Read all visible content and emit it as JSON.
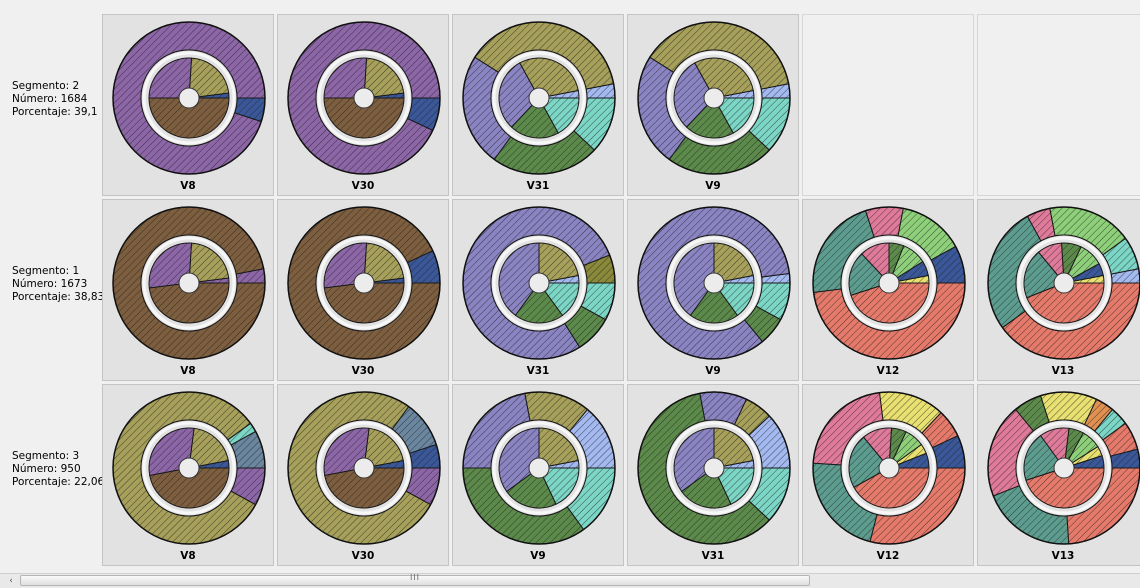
{
  "colors": {
    "purple": "#8c66a6",
    "brown": "#7d5e3f",
    "olive": "#a6a05a",
    "darkolive": "#8a8a3a",
    "blue": "#3a5899",
    "lightblue": "#a3b9f0",
    "slate": "#8a84c2",
    "green": "#5b8a4a",
    "lightgreen": "#8ed07a",
    "aqua": "#7cd6c6",
    "teal": "#5d9d8f",
    "salmon": "#e57a6b",
    "pink": "#e07a9a",
    "yellow": "#e8e070",
    "orange": "#e09050",
    "steel": "#6b87a0"
  },
  "scrollbar": {
    "left_arrow": "‹",
    "grip": "III"
  },
  "rows": [
    {
      "label": {
        "segment": "Segmento: 2",
        "number": "Número: 1684",
        "percent": "Porcentaje: 39,1"
      },
      "cells": [
        {
          "name": "V8",
          "outer": [
            {
              "color": "purple",
              "v": 95
            },
            {
              "color": "blue",
              "v": 5
            }
          ],
          "inner": [
            {
              "color": "blue",
              "v": 2
            },
            {
              "color": "olive",
              "v": 22
            },
            {
              "color": "purple",
              "v": 26
            },
            {
              "color": "brown",
              "v": 50
            }
          ]
        },
        {
          "name": "V30",
          "outer": [
            {
              "color": "purple",
              "v": 93
            },
            {
              "color": "blue",
              "v": 7
            }
          ],
          "inner": [
            {
              "color": "blue",
              "v": 2
            },
            {
              "color": "olive",
              "v": 22
            },
            {
              "color": "purple",
              "v": 26
            },
            {
              "color": "brown",
              "v": 50
            }
          ]
        },
        {
          "name": "V31",
          "outer": [
            {
              "color": "lightblue",
              "v": 3
            },
            {
              "color": "olive",
              "v": 38
            },
            {
              "color": "slate",
              "v": 24
            },
            {
              "color": "green",
              "v": 23
            },
            {
              "color": "aqua",
              "v": 12
            }
          ],
          "inner": [
            {
              "color": "lightblue",
              "v": 3
            },
            {
              "color": "olive",
              "v": 30
            },
            {
              "color": "slate",
              "v": 30
            },
            {
              "color": "green",
              "v": 20
            },
            {
              "color": "aqua",
              "v": 17
            }
          ]
        },
        {
          "name": "V9",
          "outer": [
            {
              "color": "lightblue",
              "v": 3
            },
            {
              "color": "olive",
              "v": 38
            },
            {
              "color": "slate",
              "v": 24
            },
            {
              "color": "green",
              "v": 23
            },
            {
              "color": "aqua",
              "v": 12
            }
          ],
          "inner": [
            {
              "color": "lightblue",
              "v": 3
            },
            {
              "color": "olive",
              "v": 30
            },
            {
              "color": "slate",
              "v": 30
            },
            {
              "color": "green",
              "v": 20
            },
            {
              "color": "aqua",
              "v": 17
            }
          ]
        },
        {
          "name": "",
          "empty": true
        },
        {
          "name": "",
          "empty": true
        }
      ]
    },
    {
      "label": {
        "segment": "Segmento: 1",
        "number": "Número: 1673",
        "percent": "Porcentaje: 38,83"
      },
      "cells": [
        {
          "name": "V8",
          "outer": [
            {
              "color": "purple",
              "v": 3
            },
            {
              "color": "brown",
              "v": 97
            }
          ],
          "inner": [
            {
              "color": "purple",
              "v": 2
            },
            {
              "color": "olive",
              "v": 22
            },
            {
              "color": "purple",
              "v": 28
            },
            {
              "color": "brown",
              "v": 48
            }
          ]
        },
        {
          "name": "V30",
          "outer": [
            {
              "color": "blue",
              "v": 7
            },
            {
              "color": "brown",
              "v": 93
            }
          ],
          "inner": [
            {
              "color": "blue",
              "v": 2
            },
            {
              "color": "olive",
              "v": 22
            },
            {
              "color": "purple",
              "v": 28
            },
            {
              "color": "brown",
              "v": 48
            }
          ]
        },
        {
          "name": "V31",
          "outer": [
            {
              "color": "darkolive",
              "v": 6
            },
            {
              "color": "slate",
              "v": 78
            },
            {
              "color": "green",
              "v": 8
            },
            {
              "color": "aqua",
              "v": 8
            }
          ],
          "inner": [
            {
              "color": "lightblue",
              "v": 3
            },
            {
              "color": "olive",
              "v": 22
            },
            {
              "color": "slate",
              "v": 40
            },
            {
              "color": "green",
              "v": 20
            },
            {
              "color": "aqua",
              "v": 15
            }
          ]
        },
        {
          "name": "V9",
          "outer": [
            {
              "color": "lightblue",
              "v": 2
            },
            {
              "color": "slate",
              "v": 84
            },
            {
              "color": "green",
              "v": 6
            },
            {
              "color": "aqua",
              "v": 8
            }
          ],
          "inner": [
            {
              "color": "lightblue",
              "v": 3
            },
            {
              "color": "olive",
              "v": 22
            },
            {
              "color": "slate",
              "v": 40
            },
            {
              "color": "green",
              "v": 20
            },
            {
              "color": "aqua",
              "v": 15
            }
          ]
        },
        {
          "name": "V12",
          "outer": [
            {
              "color": "blue",
              "v": 8
            },
            {
              "color": "lightgreen",
              "v": 14
            },
            {
              "color": "pink",
              "v": 8
            },
            {
              "color": "teal",
              "v": 22
            },
            {
              "color": "salmon",
              "v": 48
            }
          ],
          "inner": [
            {
              "color": "yellow",
              "v": 3
            },
            {
              "color": "blue",
              "v": 6
            },
            {
              "color": "lightgreen",
              "v": 10
            },
            {
              "color": "green",
              "v": 6
            },
            {
              "color": "pink",
              "v": 12
            },
            {
              "color": "teal",
              "v": 18
            },
            {
              "color": "salmon",
              "v": 45
            }
          ]
        },
        {
          "name": "V13",
          "outer": [
            {
              "color": "lightblue",
              "v": 3
            },
            {
              "color": "aqua",
              "v": 7
            },
            {
              "color": "lightgreen",
              "v": 18
            },
            {
              "color": "pink",
              "v": 5
            },
            {
              "color": "teal",
              "v": 27
            },
            {
              "color": "salmon",
              "v": 40
            }
          ],
          "inner": [
            {
              "color": "yellow",
              "v": 3
            },
            {
              "color": "blue",
              "v": 5
            },
            {
              "color": "lightgreen",
              "v": 10
            },
            {
              "color": "green",
              "v": 8
            },
            {
              "color": "pink",
              "v": 10
            },
            {
              "color": "teal",
              "v": 20
            },
            {
              "color": "salmon",
              "v": 44
            }
          ]
        }
      ]
    },
    {
      "label": {
        "segment": "Segmento: 3",
        "number": "Número: 950",
        "percent": "Porcentaje: 22,06"
      },
      "cells": [
        {
          "name": "V8",
          "outer": [
            {
              "color": "steel",
              "v": 8
            },
            {
              "color": "aqua",
              "v": 2
            },
            {
              "color": "olive",
              "v": 82
            },
            {
              "color": "purple",
              "v": 8
            }
          ],
          "inner": [
            {
              "color": "blue",
              "v": 3
            },
            {
              "color": "olive",
              "v": 20
            },
            {
              "color": "purple",
              "v": 30
            },
            {
              "color": "brown",
              "v": 47
            }
          ]
        },
        {
          "name": "V30",
          "outer": [
            {
              "color": "blue",
              "v": 5
            },
            {
              "color": "steel",
              "v": 10
            },
            {
              "color": "olive",
              "v": 77
            },
            {
              "color": "purple",
              "v": 8
            }
          ],
          "inner": [
            {
              "color": "blue",
              "v": 3
            },
            {
              "color": "olive",
              "v": 20
            },
            {
              "color": "purple",
              "v": 30
            },
            {
              "color": "brown",
              "v": 47
            }
          ]
        },
        {
          "name": "V9",
          "outer": [
            {
              "color": "lightblue",
              "v": 14
            },
            {
              "color": "olive",
              "v": 14
            },
            {
              "color": "slate",
              "v": 22
            },
            {
              "color": "green",
              "v": 35
            },
            {
              "color": "aqua",
              "v": 15
            }
          ],
          "inner": [
            {
              "color": "lightblue",
              "v": 3
            },
            {
              "color": "olive",
              "v": 22
            },
            {
              "color": "slate",
              "v": 35
            },
            {
              "color": "green",
              "v": 22
            },
            {
              "color": "aqua",
              "v": 18
            }
          ]
        },
        {
          "name": "V31",
          "outer": [
            {
              "color": "lightblue",
              "v": 12
            },
            {
              "color": "olive",
              "v": 6
            },
            {
              "color": "slate",
              "v": 10
            },
            {
              "color": "green",
              "v": 60
            },
            {
              "color": "aqua",
              "v": 12
            }
          ],
          "inner": [
            {
              "color": "lightblue",
              "v": 3
            },
            {
              "color": "olive",
              "v": 22
            },
            {
              "color": "slate",
              "v": 35
            },
            {
              "color": "green",
              "v": 22
            },
            {
              "color": "aqua",
              "v": 18
            }
          ]
        },
        {
          "name": "V12",
          "outer": [
            {
              "color": "blue",
              "v": 7
            },
            {
              "color": "salmon",
              "v": 6
            },
            {
              "color": "yellow",
              "v": 14
            },
            {
              "color": "pink",
              "v": 22
            },
            {
              "color": "teal",
              "v": 22
            },
            {
              "color": "salmon",
              "v": 29
            }
          ],
          "inner": [
            {
              "color": "blue",
              "v": 6
            },
            {
              "color": "yellow",
              "v": 4
            },
            {
              "color": "lightgreen",
              "v": 8
            },
            {
              "color": "green",
              "v": 6
            },
            {
              "color": "pink",
              "v": 12
            },
            {
              "color": "teal",
              "v": 22
            },
            {
              "color": "salmon",
              "v": 42
            }
          ]
        },
        {
          "name": "V13",
          "outer": [
            {
              "color": "blue",
              "v": 4
            },
            {
              "color": "salmon",
              "v": 6
            },
            {
              "color": "aqua",
              "v": 4
            },
            {
              "color": "orange",
              "v": 4
            },
            {
              "color": "yellow",
              "v": 12
            },
            {
              "color": "green",
              "v": 6
            },
            {
              "color": "pink",
              "v": 20
            },
            {
              "color": "teal",
              "v": 20
            },
            {
              "color": "salmon",
              "v": 24
            }
          ],
          "inner": [
            {
              "color": "blue",
              "v": 5
            },
            {
              "color": "yellow",
              "v": 4
            },
            {
              "color": "lightgreen",
              "v": 8
            },
            {
              "color": "green",
              "v": 6
            },
            {
              "color": "pink",
              "v": 12
            },
            {
              "color": "teal",
              "v": 20
            },
            {
              "color": "salmon",
              "v": 45
            }
          ]
        }
      ]
    }
  ]
}
